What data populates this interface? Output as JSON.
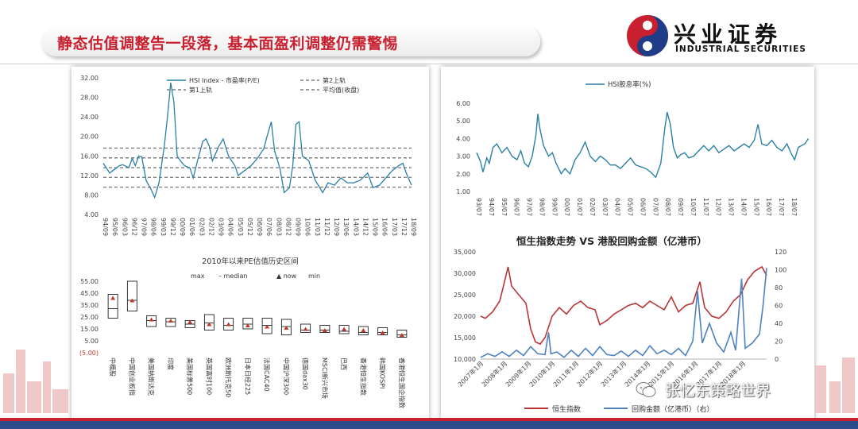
{
  "header": {
    "title": "静态估值调整告一段落，基本面盈利调整仍需警惕",
    "logo_cn": "兴业证券",
    "logo_en": "INDUSTRIAL SECURITIES",
    "brand_color": "#c8202e"
  },
  "watermark": {
    "text": "张忆东策略世界",
    "icon": "wechat-icon"
  },
  "chart_data": [
    {
      "id": "hsi-pe",
      "type": "line",
      "title": "",
      "legend": [
        "HSI Index - 市盈率(P/E)",
        "第2上轨",
        "第1上轨",
        "平均值(收盘)"
      ],
      "legend_placement": "top",
      "y_ticks": [
        "32.00",
        "28.00",
        "24.00",
        "20.00",
        "16.00",
        "12.00",
        "8.00",
        "4.00"
      ],
      "ylim": [
        4,
        32
      ],
      "x_labels": [
        "94/09",
        "95/06",
        "96/03",
        "96/12",
        "97/09",
        "98/06",
        "99/03",
        "99/12",
        "00/09",
        "01/06",
        "02/03",
        "02/12",
        "03/09",
        "04/06",
        "05/03",
        "05/12",
        "06/09",
        "07/06",
        "08/03",
        "08/12",
        "09/09",
        "10/06",
        "11/03",
        "11/12",
        "12/09",
        "13/06",
        "14/03",
        "14/12",
        "15/09",
        "16/06",
        "17/03",
        "17/12",
        "18/09"
      ],
      "bands": {
        "second_upper": 17.6,
        "first_upper": 15.6,
        "mean": 13.6,
        "first_lower": 11.6,
        "second_lower": 9.6
      },
      "pe_series": [
        [
          "94/09",
          14.5
        ],
        [
          "95/03",
          12.5
        ],
        [
          "95/06",
          13.0
        ],
        [
          "95/12",
          14.0
        ],
        [
          "96/03",
          14.2
        ],
        [
          "96/09",
          13.6
        ],
        [
          "96/12",
          15.5
        ],
        [
          "97/03",
          14.0
        ],
        [
          "97/06",
          16.0
        ],
        [
          "97/09",
          15.8
        ],
        [
          "98/01",
          11.0
        ],
        [
          "98/06",
          9.0
        ],
        [
          "98/09",
          7.5
        ],
        [
          "99/01",
          10.5
        ],
        [
          "99/03",
          13.5
        ],
        [
          "99/06",
          18.0
        ],
        [
          "99/09",
          24.0
        ],
        [
          "99/12",
          31.0
        ],
        [
          "00/03",
          27.0
        ],
        [
          "00/06",
          16.0
        ],
        [
          "00/09",
          15.0
        ],
        [
          "01/01",
          14.0
        ],
        [
          "01/06",
          13.5
        ],
        [
          "01/09",
          11.5
        ],
        [
          "02/01",
          15.0
        ],
        [
          "02/06",
          19.0
        ],
        [
          "02/09",
          19.5
        ],
        [
          "02/12",
          18.0
        ],
        [
          "03/03",
          15.0
        ],
        [
          "03/06",
          16.5
        ],
        [
          "03/09",
          18.0
        ],
        [
          "04/01",
          19.5
        ],
        [
          "04/06",
          16.0
        ],
        [
          "04/12",
          14.0
        ],
        [
          "05/03",
          12.0
        ],
        [
          "05/09",
          13.0
        ],
        [
          "06/03",
          14.0
        ],
        [
          "06/09",
          15.5
        ],
        [
          "07/03",
          17.5
        ],
        [
          "07/06",
          20.0
        ],
        [
          "07/10",
          23.0
        ],
        [
          "08/01",
          17.0
        ],
        [
          "08/06",
          13.5
        ],
        [
          "08/10",
          8.5
        ],
        [
          "09/03",
          9.5
        ],
        [
          "09/06",
          14.0
        ],
        [
          "09/09",
          22.5
        ],
        [
          "09/12",
          23.0
        ],
        [
          "10/03",
          16.0
        ],
        [
          "10/09",
          15.0
        ],
        [
          "11/03",
          11.0
        ],
        [
          "11/10",
          8.5
        ],
        [
          "12/03",
          10.5
        ],
        [
          "12/09",
          10.0
        ],
        [
          "13/03",
          11.5
        ],
        [
          "13/09",
          10.5
        ],
        [
          "14/03",
          10.5
        ],
        [
          "14/09",
          11.0
        ],
        [
          "15/04",
          12.5
        ],
        [
          "15/09",
          9.5
        ],
        [
          "16/03",
          10.0
        ],
        [
          "16/09",
          11.5
        ],
        [
          "17/03",
          13.0
        ],
        [
          "17/09",
          14.0
        ],
        [
          "18/01",
          14.5
        ],
        [
          "18/04",
          12.5
        ],
        [
          "18/09",
          10.0
        ]
      ]
    },
    {
      "id": "pe-range",
      "type": "bar",
      "title": "2010年以来PE估值历史区间",
      "legend": [
        "max",
        "median",
        "now",
        "min"
      ],
      "y_ticks": [
        "55.00",
        "45.00",
        "35.00",
        "25.00",
        "15.00",
        "5.00",
        "(5.00)"
      ],
      "ylim": [
        -5,
        55
      ],
      "categories": [
        "中概股",
        "中国创业板指",
        "美国纳斯达克",
        "印度",
        "美国标普500",
        "英国富时100",
        "欧洲斯托克50",
        "日本日经225",
        "法国CAC40",
        "中国沪深300",
        "德国dax30",
        "MSCI新兴市场",
        "巴西",
        "香港恒生指数",
        "韩国KOSPI",
        "香港恒生国企指数"
      ],
      "max": [
        44,
        55,
        26,
        24,
        22,
        27,
        24,
        24,
        24,
        23,
        19,
        18,
        18,
        17,
        16,
        14
      ],
      "median": [
        32,
        39,
        22,
        21,
        19,
        20,
        18,
        19,
        18,
        17,
        14,
        14,
        13,
        12,
        12,
        10
      ],
      "now": [
        41,
        39,
        23,
        22,
        21,
        19,
        19,
        18,
        17,
        16,
        15,
        14,
        15,
        14,
        12,
        10
      ],
      "min": [
        24,
        30,
        17,
        17,
        16,
        14,
        14,
        15,
        11,
        10,
        12,
        12,
        11,
        10,
        10,
        8
      ]
    },
    {
      "id": "hsi-yield",
      "type": "line",
      "title": "",
      "legend": [
        "HSI股息率(%)"
      ],
      "y_ticks": [
        "6.00",
        "5.00",
        "4.00",
        "3.00",
        "2.00",
        "1.00"
      ],
      "ylim": [
        1,
        6
      ],
      "x_labels": [
        "93/07",
        "94/07",
        "95/07",
        "96/07",
        "97/07",
        "98/07",
        "99/07",
        "00/07",
        "01/07",
        "02/07",
        "03/07",
        "04/07",
        "05/07",
        "06/07",
        "07/07",
        "08/07",
        "09/07",
        "10/07",
        "11/07",
        "12/07",
        "13/07",
        "14/07",
        "15/07",
        "16/07",
        "17/07",
        "18/07"
      ],
      "values": [
        [
          0,
          3.2
        ],
        [
          0.3,
          2.7
        ],
        [
          0.5,
          2.1
        ],
        [
          0.8,
          2.9
        ],
        [
          1.0,
          2.6
        ],
        [
          1.3,
          3.5
        ],
        [
          1.6,
          3.7
        ],
        [
          2.0,
          3.2
        ],
        [
          2.4,
          3.5
        ],
        [
          2.8,
          3.0
        ],
        [
          3.2,
          2.8
        ],
        [
          3.5,
          3.3
        ],
        [
          3.8,
          2.6
        ],
        [
          4.1,
          2.4
        ],
        [
          4.4,
          3.0
        ],
        [
          4.7,
          4.2
        ],
        [
          4.85,
          5.4
        ],
        [
          5.0,
          4.6
        ],
        [
          5.3,
          3.6
        ],
        [
          5.7,
          3.0
        ],
        [
          6.0,
          3.2
        ],
        [
          6.3,
          2.6
        ],
        [
          6.7,
          2.0
        ],
        [
          7.0,
          2.3
        ],
        [
          7.4,
          2.0
        ],
        [
          7.8,
          2.8
        ],
        [
          8.2,
          3.2
        ],
        [
          8.6,
          3.8
        ],
        [
          9.0,
          3.0
        ],
        [
          9.4,
          2.7
        ],
        [
          9.8,
          3.0
        ],
        [
          10.2,
          2.8
        ],
        [
          10.6,
          2.5
        ],
        [
          11.0,
          2.5
        ],
        [
          11.4,
          2.3
        ],
        [
          11.8,
          2.6
        ],
        [
          12.2,
          2.9
        ],
        [
          12.6,
          2.5
        ],
        [
          13.0,
          2.4
        ],
        [
          13.4,
          2.3
        ],
        [
          13.8,
          2.1
        ],
        [
          14.2,
          1.8
        ],
        [
          14.6,
          2.6
        ],
        [
          14.9,
          4.5
        ],
        [
          15.1,
          5.5
        ],
        [
          15.35,
          4.8
        ],
        [
          15.6,
          3.5
        ],
        [
          15.9,
          2.9
        ],
        [
          16.2,
          3.1
        ],
        [
          16.5,
          3.2
        ],
        [
          16.8,
          2.9
        ],
        [
          17.2,
          3.0
        ],
        [
          17.6,
          3.3
        ],
        [
          18.0,
          3.6
        ],
        [
          18.4,
          3.3
        ],
        [
          18.8,
          3.6
        ],
        [
          19.2,
          3.2
        ],
        [
          19.6,
          3.4
        ],
        [
          20.0,
          3.6
        ],
        [
          20.4,
          3.3
        ],
        [
          20.8,
          3.5
        ],
        [
          21.2,
          3.7
        ],
        [
          21.6,
          3.5
        ],
        [
          22.0,
          3.9
        ],
        [
          22.3,
          4.8
        ],
        [
          22.6,
          3.7
        ],
        [
          23.0,
          3.6
        ],
        [
          23.4,
          3.9
        ],
        [
          23.8,
          3.5
        ],
        [
          24.2,
          3.3
        ],
        [
          24.6,
          3.7
        ],
        [
          24.9,
          3.2
        ],
        [
          25.2,
          2.8
        ],
        [
          25.5,
          3.5
        ],
        [
          26.0,
          3.7
        ],
        [
          26.3,
          4.0
        ]
      ]
    },
    {
      "id": "hsi-buyback",
      "type": "line",
      "title": "恒生指数走势 VS 港股回购金额（亿港币）",
      "series": [
        {
          "name": "恒生指数",
          "axis": "left",
          "color": "#b93535"
        },
        {
          "name": "回购金额（亿港币）（右）",
          "axis": "right",
          "color": "#4f81bd"
        }
      ],
      "left_ticks": [
        "35,000",
        "30,000",
        "25,000",
        "20,000",
        "15,000",
        "10,000"
      ],
      "right_ticks": [
        "120",
        "100",
        "80",
        "60",
        "40",
        "20",
        "0"
      ],
      "ylim_left": [
        10000,
        35000
      ],
      "ylim_right": [
        0,
        120
      ],
      "x_labels": [
        "2007年1月",
        "2008年1月",
        "2009年1月",
        "2010年1月",
        "2011年1月",
        "2012年1月",
        "2013年1月",
        "2014年1月",
        "2015年1月",
        "2016年1月",
        "2017年1月",
        "2018年1月"
      ],
      "hsi": [
        [
          0,
          20000
        ],
        [
          0.2,
          19500
        ],
        [
          0.5,
          21000
        ],
        [
          0.8,
          23500
        ],
        [
          1.0,
          28000
        ],
        [
          1.15,
          31500
        ],
        [
          1.3,
          27000
        ],
        [
          1.6,
          25000
        ],
        [
          1.9,
          23000
        ],
        [
          2.1,
          17000
        ],
        [
          2.3,
          14000
        ],
        [
          2.5,
          13500
        ],
        [
          2.7,
          15000
        ],
        [
          3.0,
          20000
        ],
        [
          3.3,
          22000
        ],
        [
          3.6,
          20500
        ],
        [
          3.9,
          22500
        ],
        [
          4.2,
          23500
        ],
        [
          4.5,
          22000
        ],
        [
          4.8,
          21500
        ],
        [
          5.0,
          18000
        ],
        [
          5.3,
          19000
        ],
        [
          5.6,
          20500
        ],
        [
          5.9,
          21500
        ],
        [
          6.2,
          22500
        ],
        [
          6.5,
          23000
        ],
        [
          6.8,
          22000
        ],
        [
          7.1,
          23500
        ],
        [
          7.4,
          22500
        ],
        [
          7.7,
          21500
        ],
        [
          8.0,
          24500
        ],
        [
          8.3,
          21000
        ],
        [
          8.6,
          22500
        ],
        [
          8.9,
          23000
        ],
        [
          9.2,
          28000
        ],
        [
          9.4,
          22000
        ],
        [
          9.7,
          20000
        ],
        [
          10.0,
          19500
        ],
        [
          10.3,
          21000
        ],
        [
          10.6,
          23500
        ],
        [
          10.9,
          25000
        ],
        [
          11.2,
          28500
        ],
        [
          11.5,
          30500
        ],
        [
          11.8,
          31500
        ],
        [
          12.0,
          29500
        ]
      ],
      "buyback": [
        [
          0,
          2
        ],
        [
          0.3,
          6
        ],
        [
          0.6,
          3
        ],
        [
          0.9,
          8
        ],
        [
          1.2,
          3
        ],
        [
          1.5,
          10
        ],
        [
          1.8,
          4
        ],
        [
          2.1,
          14
        ],
        [
          2.4,
          6
        ],
        [
          2.7,
          5
        ],
        [
          2.85,
          30
        ],
        [
          2.95,
          6
        ],
        [
          3.2,
          8
        ],
        [
          3.5,
          2
        ],
        [
          3.8,
          10
        ],
        [
          4.1,
          3
        ],
        [
          4.4,
          12
        ],
        [
          4.7,
          4
        ],
        [
          5.0,
          14
        ],
        [
          5.3,
          5
        ],
        [
          5.6,
          4
        ],
        [
          5.9,
          9
        ],
        [
          6.2,
          3
        ],
        [
          6.5,
          10
        ],
        [
          6.8,
          4
        ],
        [
          7.1,
          15
        ],
        [
          7.4,
          6
        ],
        [
          7.7,
          10
        ],
        [
          8.0,
          5
        ],
        [
          8.3,
          12
        ],
        [
          8.6,
          4
        ],
        [
          8.9,
          20
        ],
        [
          9.1,
          76
        ],
        [
          9.3,
          18
        ],
        [
          9.6,
          40
        ],
        [
          9.9,
          18
        ],
        [
          10.2,
          8
        ],
        [
          10.5,
          30
        ],
        [
          10.7,
          10
        ],
        [
          10.95,
          90
        ],
        [
          11.1,
          12
        ],
        [
          11.4,
          18
        ],
        [
          11.7,
          28
        ],
        [
          11.85,
          60
        ],
        [
          12.0,
          102
        ]
      ]
    }
  ]
}
